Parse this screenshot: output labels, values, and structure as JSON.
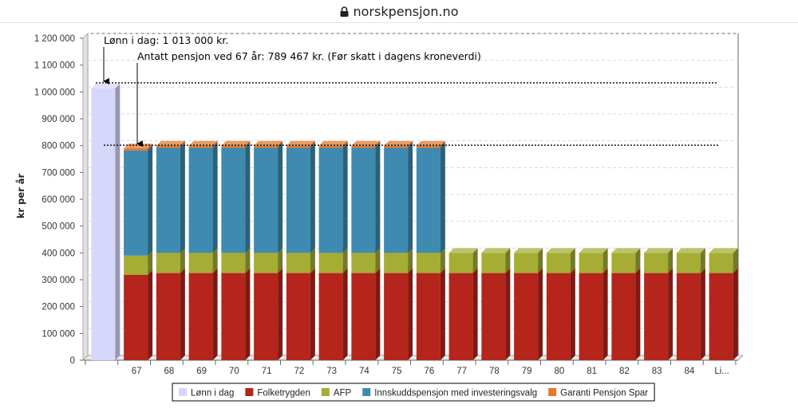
{
  "browser": {
    "url": "norskpensjon.no",
    "lock_icon": "lock-icon"
  },
  "chart_data": {
    "type": "bar",
    "stacked": true,
    "ylabel": "kr per år",
    "ylim": [
      0,
      1200000
    ],
    "yticks": [
      0,
      100000,
      200000,
      300000,
      400000,
      500000,
      600000,
      700000,
      800000,
      900000,
      1000000,
      1100000,
      1200000
    ],
    "ytick_labels": [
      "0",
      "100 000",
      "200 000",
      "300 000",
      "400 000",
      "500 000",
      "600 000",
      "700 000",
      "800 000",
      "900 000",
      "1 000 000",
      "1 100 000",
      "1 200 000"
    ],
    "categories": [
      "",
      "67",
      "68",
      "69",
      "70",
      "71",
      "72",
      "73",
      "74",
      "75",
      "76",
      "77",
      "78",
      "79",
      "80",
      "81",
      "82",
      "83",
      "84",
      "Li..."
    ],
    "series": [
      {
        "name": "Lønn i dag",
        "color": "#d7d7fb",
        "values": [
          1013000,
          0,
          0,
          0,
          0,
          0,
          0,
          0,
          0,
          0,
          0,
          0,
          0,
          0,
          0,
          0,
          0,
          0,
          0,
          0
        ]
      },
      {
        "name": "Folketrygden",
        "color": "#b5251b",
        "values": [
          0,
          318000,
          325000,
          325000,
          325000,
          325000,
          325000,
          325000,
          325000,
          325000,
          325000,
          325000,
          325000,
          325000,
          325000,
          325000,
          325000,
          325000,
          325000,
          325000
        ]
      },
      {
        "name": "AFP",
        "color": "#a6ad35",
        "values": [
          0,
          72000,
          75000,
          75000,
          75000,
          75000,
          75000,
          75000,
          75000,
          75000,
          75000,
          75000,
          75000,
          75000,
          75000,
          75000,
          75000,
          75000,
          75000,
          75000
        ]
      },
      {
        "name": "Innskuddspensjon med investeringsvalg",
        "color": "#3e8ab0",
        "values": [
          0,
          392000,
          392000,
          392000,
          392000,
          392000,
          392000,
          392000,
          392000,
          392000,
          392000,
          0,
          0,
          0,
          0,
          0,
          0,
          0,
          0,
          0
        ]
      },
      {
        "name": "Garanti Pensjon Spar",
        "color": "#e1792f",
        "values": [
          0,
          7467,
          7467,
          7467,
          7467,
          7467,
          7467,
          7467,
          7467,
          7467,
          7467,
          0,
          0,
          0,
          0,
          0,
          0,
          0,
          0,
          0
        ]
      }
    ],
    "reference_lines": [
      {
        "value": 1013000,
        "label": "Lønn i dag: 1 013 000 kr."
      },
      {
        "value": 789467,
        "label": "Antatt pensjon ved 67 år: 789 467 kr. (Før skatt i dagens kroneverdi)"
      }
    ],
    "grid": true,
    "legend": "bottom"
  }
}
